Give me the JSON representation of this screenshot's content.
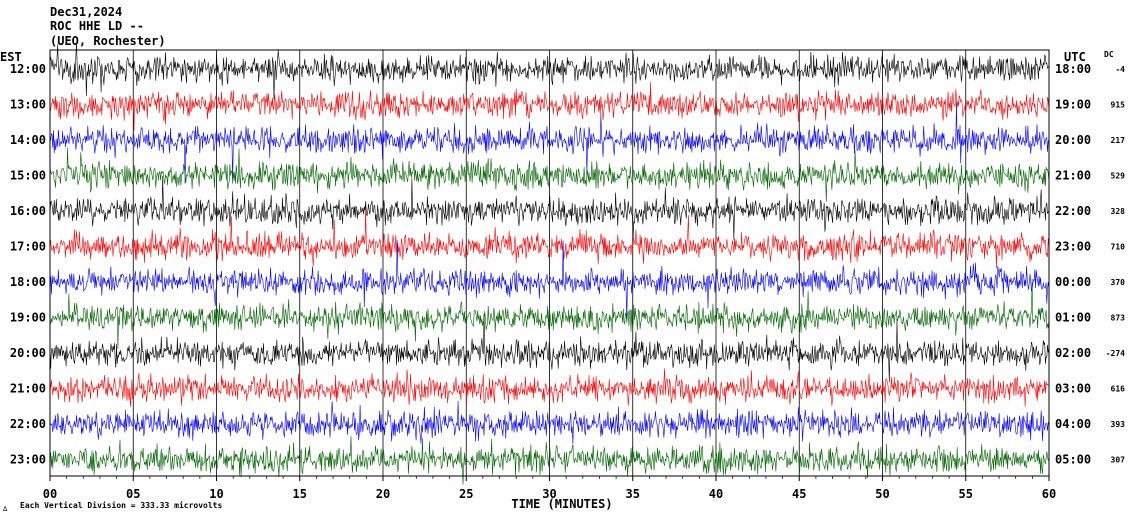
{
  "header": {
    "date": "Dec31,2024",
    "station": "ROC HHE LD --",
    "location": "(UEO, Rochester)"
  },
  "chart_data": {
    "type": "line",
    "title": "",
    "xlabel": "TIME (MINUTES)",
    "left_axis_label": "EST",
    "right_axis_label": "UTC",
    "dc_label": "DC",
    "xlim": [
      0,
      60
    ],
    "x_ticks": [
      "00",
      "05",
      "10",
      "15",
      "20",
      "25",
      "30",
      "35",
      "40",
      "45",
      "50",
      "55",
      "60"
    ],
    "scale_note": "Each Vertical Division =  333.33 microvolts",
    "trace_colors": [
      "#000000",
      "#ff0000",
      "#0000ff",
      "#006400"
    ],
    "rows": [
      {
        "est": "12:00",
        "utc": "18:00",
        "dc": "-4"
      },
      {
        "est": "13:00",
        "utc": "19:00",
        "dc": "915"
      },
      {
        "est": "14:00",
        "utc": "20:00",
        "dc": "217"
      },
      {
        "est": "15:00",
        "utc": "21:00",
        "dc": "529"
      },
      {
        "est": "16:00",
        "utc": "22:00",
        "dc": "328"
      },
      {
        "est": "17:00",
        "utc": "23:00",
        "dc": "710"
      },
      {
        "est": "18:00",
        "utc": "00:00",
        "dc": "370"
      },
      {
        "est": "19:00",
        "utc": "01:00",
        "dc": "873"
      },
      {
        "est": "20:00",
        "utc": "02:00",
        "dc": "-274"
      },
      {
        "est": "21:00",
        "utc": "03:00",
        "dc": "616"
      },
      {
        "est": "22:00",
        "utc": "04:00",
        "dc": "393"
      },
      {
        "est": "23:00",
        "utc": "05:00",
        "dc": "307"
      }
    ]
  }
}
